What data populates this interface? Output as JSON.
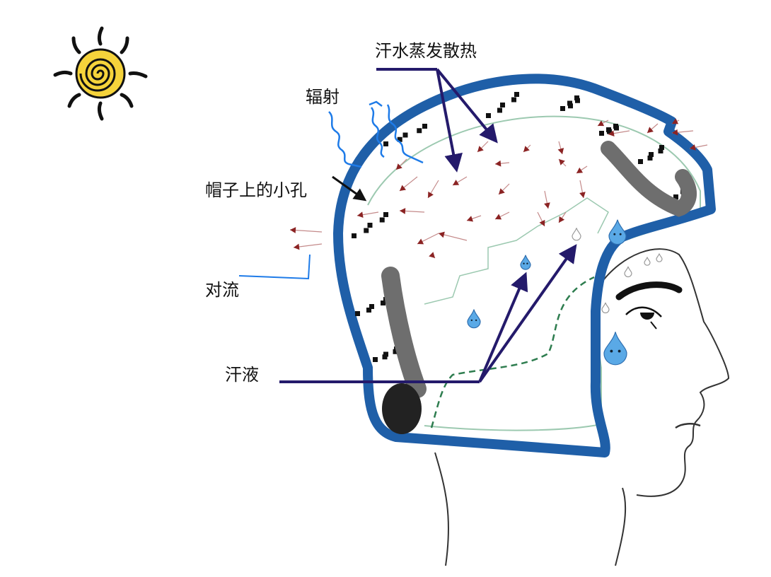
{
  "labels": {
    "evaporation": "汗水蒸发散热",
    "radiation": "辐射",
    "holes": "帽子上的小孔",
    "convection": "对流",
    "sweat": "汗液"
  },
  "colors": {
    "helmet_shell": "#1f5fa8",
    "helmet_shell_dark": "#15457d",
    "pointer_arrow": "#241a6b",
    "airflow_arrow": "#8b2323",
    "radiation_line": "#1e7be8",
    "sweat_drop": "#5aa9e6",
    "foam_pad": "#6e6e6e",
    "ear_pad": "#222222",
    "strap_dashed": "#2e7d4f",
    "sun_core": "#f5d33b",
    "sun_ray": "#111111"
  },
  "icons": {
    "sun": "sun-icon",
    "drop": "sweat-drop-icon"
  }
}
